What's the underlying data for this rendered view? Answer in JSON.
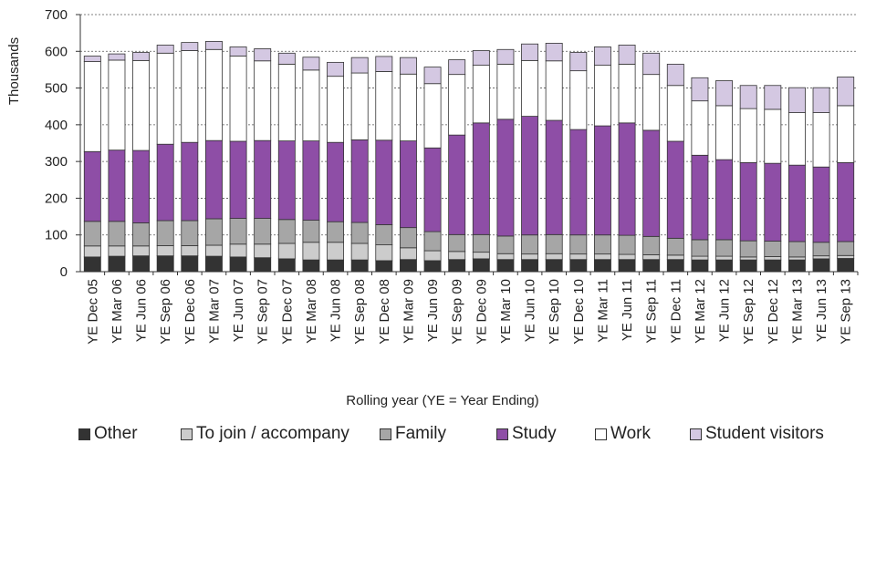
{
  "chart_data": {
    "type": "bar",
    "stacked": true,
    "title": "",
    "xlabel": "Rolling year (YE = Year Ending)",
    "ylabel": "Thousands",
    "ylim": [
      0,
      700
    ],
    "yticks": [
      0,
      100,
      200,
      300,
      400,
      500,
      600,
      700
    ],
    "grid": true,
    "legend_position": "bottom",
    "categories": [
      "YE Dec 05",
      "YE Mar 06",
      "YE Jun 06",
      "YE Sep 06",
      "YE Dec 06",
      "YE Mar 07",
      "YE Jun 07",
      "YE Sep 07",
      "YE Dec 07",
      "YE Mar 08",
      "YE Jun 08",
      "YE Sep 08",
      "YE Dec 08",
      "YE Mar 09",
      "YE Jun 09",
      "YE Sep 09",
      "YE Dec 09",
      "YE Mar 10",
      "YE Jun 10",
      "YE Sep 10",
      "YE Dec 10",
      "YE Mar 11",
      "YE Jun 11",
      "YE Sep 11",
      "YE Dec 11",
      "YE Mar 12",
      "YE Jun 12",
      "YE Sep 12",
      "YE Dec 12",
      "YE Mar 13",
      "YE Jun 13",
      "YE Sep 13"
    ],
    "series": [
      {
        "name": "Other",
        "color": "#333333",
        "values": [
          40,
          42,
          43,
          43,
          43,
          42,
          40,
          38,
          35,
          32,
          32,
          32,
          30,
          33,
          30,
          33,
          35,
          33,
          33,
          33,
          33,
          33,
          33,
          33,
          33,
          32,
          32,
          32,
          32,
          32,
          35,
          36
        ]
      },
      {
        "name": "To join / accompany",
        "color": "#cccccc",
        "values": [
          30,
          28,
          27,
          28,
          28,
          30,
          35,
          37,
          42,
          48,
          48,
          45,
          43,
          32,
          27,
          22,
          18,
          16,
          15,
          16,
          15,
          15,
          14,
          13,
          12,
          10,
          10,
          8,
          9,
          8,
          8,
          8
        ]
      },
      {
        "name": "Family",
        "color": "#a6a6a6",
        "values": [
          67,
          67,
          63,
          68,
          68,
          72,
          70,
          70,
          65,
          60,
          56,
          57,
          55,
          55,
          52,
          46,
          48,
          48,
          52,
          52,
          52,
          52,
          52,
          50,
          46,
          45,
          45,
          44,
          42,
          42,
          37,
          38
        ]
      },
      {
        "name": "Study",
        "color": "#8e4ea6",
        "values": [
          190,
          194,
          197,
          208,
          213,
          213,
          210,
          212,
          214,
          216,
          216,
          225,
          230,
          236,
          228,
          271,
          304,
          318,
          323,
          311,
          287,
          297,
          306,
          289,
          264,
          230,
          218,
          213,
          212,
          208,
          205,
          215
        ]
      },
      {
        "name": "Work",
        "color": "#ffffff",
        "values": [
          245,
          245,
          245,
          248,
          250,
          248,
          232,
          217,
          209,
          193,
          180,
          182,
          187,
          182,
          175,
          165,
          157,
          150,
          152,
          162,
          160,
          165,
          160,
          152,
          152,
          148,
          147,
          147,
          147,
          143,
          148,
          155
        ]
      },
      {
        "name": "Student visitors",
        "color": "#d4c8e2",
        "values": [
          15,
          17,
          22,
          22,
          22,
          22,
          25,
          33,
          30,
          35,
          38,
          42,
          41,
          45,
          45,
          40,
          40,
          40,
          45,
          48,
          50,
          50,
          52,
          58,
          58,
          63,
          68,
          63,
          65,
          68,
          68,
          78
        ]
      }
    ]
  }
}
